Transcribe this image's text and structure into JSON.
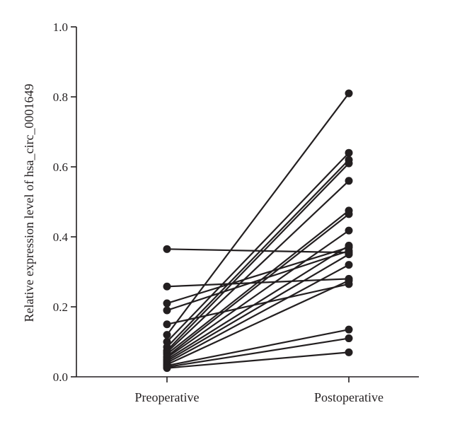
{
  "chart_data": {
    "type": "line",
    "title": "",
    "xlabel": "",
    "ylabel": "Relative expression level of hsa_circ_0001649",
    "categories": [
      "Preoperative",
      "Postoperative"
    ],
    "ylim": [
      0,
      1.0
    ],
    "yticks": [
      "0.0",
      "0.2",
      "0.4",
      "0.6",
      "0.8",
      "1.0"
    ],
    "grid": false,
    "legend": "none",
    "series": [
      {
        "values": [
          0.365,
          0.355
        ]
      },
      {
        "values": [
          0.258,
          0.28
        ]
      },
      {
        "values": [
          0.21,
          0.37
        ]
      },
      {
        "values": [
          0.19,
          0.36
        ]
      },
      {
        "values": [
          0.15,
          0.265
        ]
      },
      {
        "values": [
          0.12,
          0.81
        ]
      },
      {
        "values": [
          0.1,
          0.64
        ]
      },
      {
        "values": [
          0.085,
          0.62
        ]
      },
      {
        "values": [
          0.075,
          0.61
        ]
      },
      {
        "values": [
          0.07,
          0.56
        ]
      },
      {
        "values": [
          0.065,
          0.475
        ]
      },
      {
        "values": [
          0.058,
          0.465
        ]
      },
      {
        "values": [
          0.055,
          0.418
        ]
      },
      {
        "values": [
          0.05,
          0.375
        ]
      },
      {
        "values": [
          0.045,
          0.35
        ]
      },
      {
        "values": [
          0.04,
          0.32
        ]
      },
      {
        "values": [
          0.035,
          0.275
        ]
      },
      {
        "values": [
          0.032,
          0.135
        ]
      },
      {
        "values": [
          0.028,
          0.11
        ]
      },
      {
        "values": [
          0.025,
          0.07
        ]
      }
    ],
    "colors": {
      "line": "#231f20",
      "marker": "#231f20"
    }
  }
}
